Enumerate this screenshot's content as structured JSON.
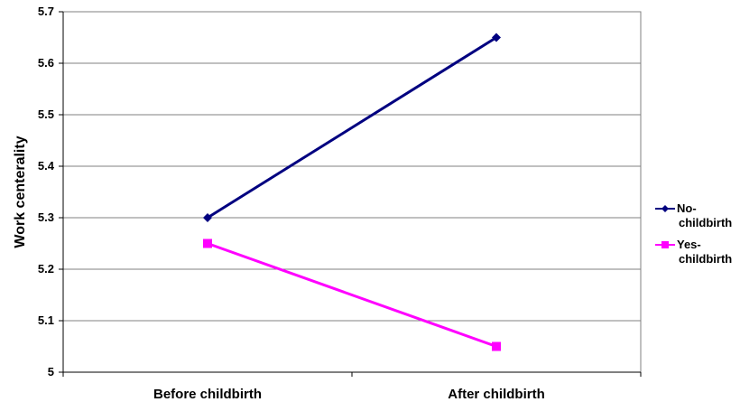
{
  "chart_data": {
    "type": "line",
    "categories": [
      "Before childbirth",
      "After childbirth"
    ],
    "series": [
      {
        "name": "No-childbirth",
        "values": [
          5.3,
          5.65
        ],
        "color": "#000080",
        "marker": "diamond"
      },
      {
        "name": "Yes-childbirth",
        "values": [
          5.25,
          5.05
        ],
        "color": "#ff00ff",
        "marker": "square"
      }
    ],
    "ylabel": "Work centerality",
    "xlabel": "",
    "ylim": [
      5,
      5.7
    ],
    "yticks": [
      "5",
      "5.1",
      "5.2",
      "5.3",
      "5.4",
      "5.5",
      "5.6",
      "5.7"
    ],
    "grid": true,
    "legend": "right"
  }
}
